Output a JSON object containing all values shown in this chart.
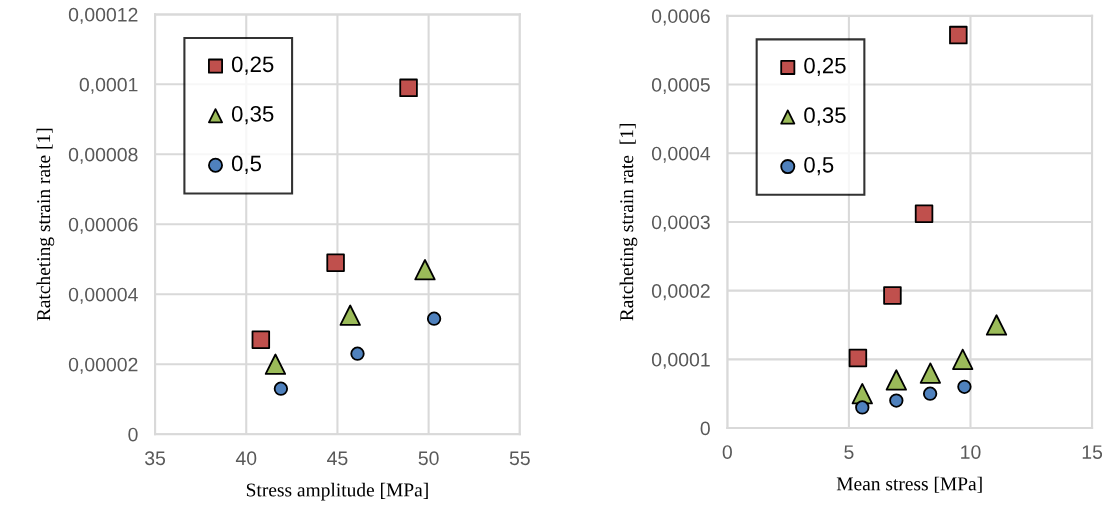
{
  "chart_data": [
    {
      "type": "scatter",
      "xlabel": "Stress amplitude [MPa]",
      "ylabel": "Ratcheting strain rate [1]",
      "xlim": [
        35,
        55
      ],
      "xticks": [
        35,
        40,
        45,
        50,
        55
      ],
      "ylim": [
        0,
        0.00012
      ],
      "yticks": [
        0,
        {
          "value": 2e-05,
          "label": "0,00002"
        },
        {
          "value": 4e-05,
          "label": "0,00004"
        },
        {
          "value": 6e-05,
          "label": "0,00006"
        },
        {
          "value": 8e-05,
          "label": "0,00008"
        },
        {
          "value": 0.0001,
          "label": "0,0001"
        },
        {
          "value": 0.00012,
          "label": "0,00012"
        }
      ],
      "grid": true,
      "legend": "top left",
      "series": [
        {
          "name": "0,25",
          "color": "#c0504d",
          "marker": "square",
          "x": [
            40.8,
            44.9,
            48.9
          ],
          "values": [
            2.7e-05,
            4.9e-05,
            9.9e-05
          ]
        },
        {
          "name": "0,35",
          "color": "#9bbb59",
          "marker": "triangle",
          "x": [
            41.6,
            45.7,
            49.8
          ],
          "values": [
            2e-05,
            3.4e-05,
            4.7e-05
          ]
        },
        {
          "name": "0,5",
          "color": "#4f81bd",
          "marker": "circle",
          "x": [
            41.9,
            46.1,
            50.3
          ],
          "values": [
            1.3e-05,
            2.3e-05,
            3.3e-05
          ]
        }
      ]
    },
    {
      "type": "scatter",
      "xlabel": "Mean stress [MPa]",
      "ylabel": "Ratcheting strain rate  [1]",
      "xlim": [
        0,
        15
      ],
      "xticks": [
        0,
        5,
        10,
        15
      ],
      "ylim": [
        0,
        0.0006
      ],
      "yticks": [
        0,
        {
          "value": 0.0001,
          "label": "0,0001"
        },
        {
          "value": 0.0002,
          "label": "0,0002"
        },
        {
          "value": 0.0003,
          "label": "0,0003"
        },
        {
          "value": 0.0004,
          "label": "0,0004"
        },
        {
          "value": 0.0005,
          "label": "0,0005"
        },
        {
          "value": 0.0006,
          "label": "0,0006"
        }
      ],
      "grid": true,
      "legend": "top left",
      "series": [
        {
          "name": "0,25",
          "color": "#c0504d",
          "marker": "square",
          "x": [
            5.37,
            6.79,
            8.09,
            9.5
          ],
          "values": [
            0.000102,
            0.000193,
            0.000312,
            0.000572
          ]
        },
        {
          "name": "0,35",
          "color": "#9bbb59",
          "marker": "triangle",
          "x": [
            5.55,
            6.95,
            8.35,
            9.68,
            11.07
          ],
          "values": [
            5e-05,
            7e-05,
            8e-05,
            0.0001,
            0.00015
          ]
        },
        {
          "name": "0,5",
          "color": "#4f81bd",
          "marker": "circle",
          "x": [
            5.55,
            6.95,
            8.34,
            9.75
          ],
          "values": [
            3e-05,
            4e-05,
            5e-05,
            6e-05
          ]
        }
      ]
    }
  ]
}
